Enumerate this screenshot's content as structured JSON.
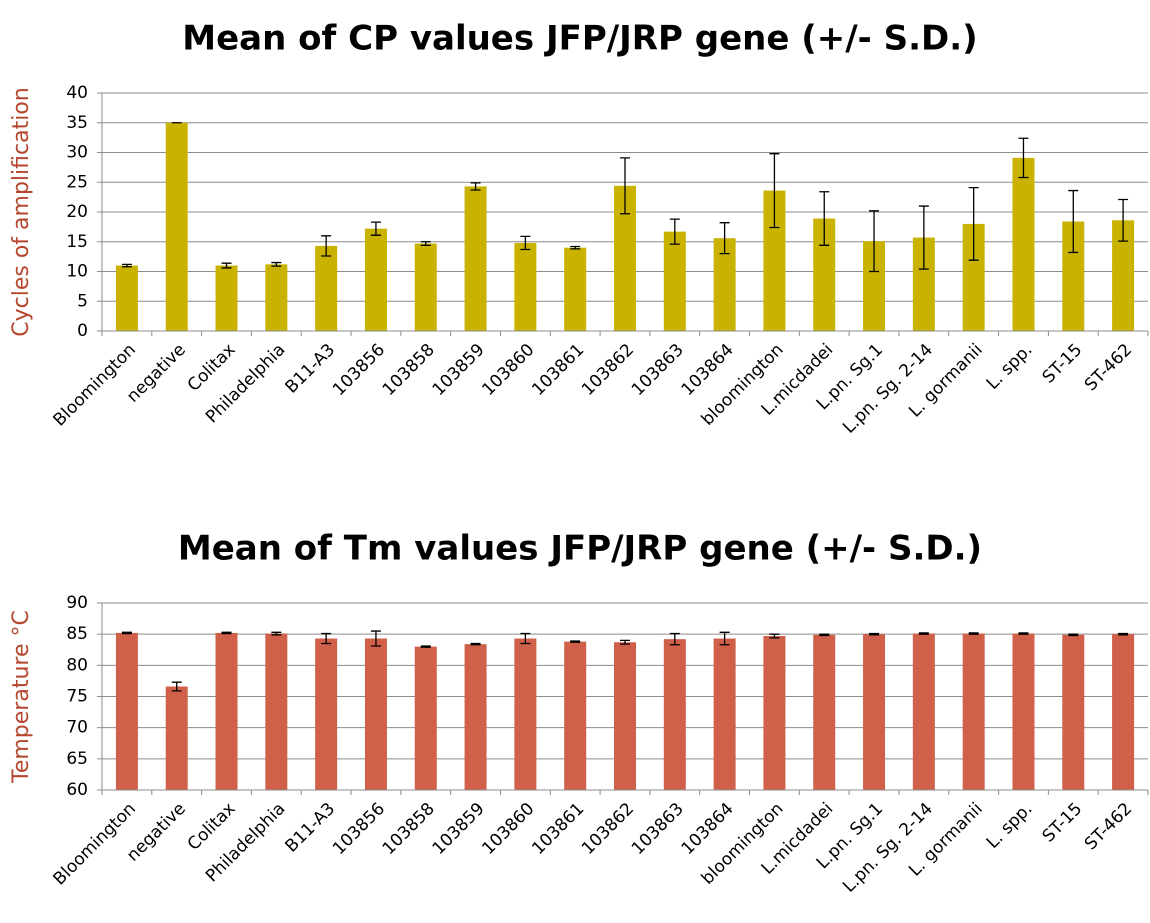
{
  "chart_data": [
    {
      "type": "bar",
      "title": "Mean of CP values JFP/JRP gene (+/- S.D.)",
      "y_label": "Cycles of amplification",
      "categories": [
        "Bloomington",
        "negative",
        "Colitax",
        "Philadelphia",
        "B11-A3",
        "103856",
        "103858",
        "103859",
        "103860",
        "103861",
        "103862",
        "103863",
        "103864",
        "bloomington",
        "L.micdadei",
        "L.pn. Sg.1",
        "L.pn. Sg. 2-14",
        "L. gormanii",
        "L. spp.",
        "ST-15",
        "ST-462"
      ],
      "values": [
        11,
        35,
        11,
        11.2,
        14.3,
        17.2,
        14.7,
        24.3,
        14.8,
        14,
        24.4,
        16.7,
        15.6,
        23.6,
        18.9,
        15.1,
        15.7,
        18,
        29.1,
        18.4,
        18.6
      ],
      "errors": [
        0.2,
        0,
        0.4,
        0.3,
        1.7,
        1.1,
        0.3,
        0.6,
        1.1,
        0.2,
        4.7,
        2.1,
        2.6,
        6.2,
        4.5,
        5.1,
        5.3,
        6.1,
        3.3,
        5.2,
        3.5
      ],
      "color": "#c9b300",
      "ylim": [
        0,
        40
      ],
      "yticks": [
        0,
        5,
        10,
        15,
        20,
        25,
        30,
        35,
        40
      ],
      "grid": true
    },
    {
      "type": "bar",
      "title": "Mean of Tm values JFP/JRP gene (+/- S.D.)",
      "y_label": "Temperature °C",
      "categories": [
        "Bloomington",
        "negative",
        "Colitax",
        "Philadelphia",
        "B11-A3",
        "103856",
        "103858",
        "103859",
        "103860",
        "103861",
        "103862",
        "103863",
        "103864",
        "bloomington",
        "L.micdadei",
        "L.pn. Sg.1",
        "L.pn. Sg. 2-14",
        "L. gormanii",
        "L. spp.",
        "ST-15",
        "ST-462"
      ],
      "values": [
        85.2,
        76.6,
        85.2,
        85.1,
        84.3,
        84.3,
        83.0,
        83.4,
        84.3,
        83.8,
        83.7,
        84.2,
        84.3,
        84.7,
        84.9,
        85.0,
        85.1,
        85.1,
        85.1,
        84.9,
        85.0
      ],
      "errors": [
        0.1,
        0.7,
        0.1,
        0.2,
        0.8,
        1.2,
        0.1,
        0.1,
        0.8,
        0.1,
        0.3,
        0.9,
        1.0,
        0.3,
        0.1,
        0.1,
        0.1,
        0.1,
        0.1,
        0.1,
        0.1
      ],
      "color": "#d0604a",
      "ylim": [
        60,
        90
      ],
      "yticks": [
        60,
        65,
        70,
        75,
        80,
        85,
        90
      ],
      "grid": true
    }
  ]
}
